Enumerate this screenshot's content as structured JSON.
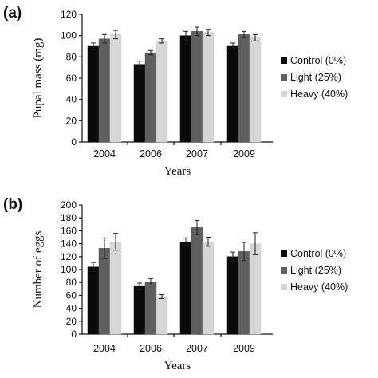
{
  "legend": [
    {
      "label": "Control (0%)",
      "color": "#0a0a0a"
    },
    {
      "label": "Light (25%)",
      "color": "#5f5f5f"
    },
    {
      "label": "Heavy (40%)",
      "color": "#d6d6d6"
    }
  ],
  "chart_data": [
    {
      "panel_label": "(a)",
      "type": "bar",
      "categories": [
        "2004",
        "2006",
        "2007",
        "2009"
      ],
      "series": [
        {
          "name": "Control (0%)",
          "values": [
            90,
            73,
            100,
            90
          ],
          "errors": [
            3,
            3,
            4,
            3
          ]
        },
        {
          "name": "Light (25%)",
          "values": [
            97,
            84,
            104,
            101
          ],
          "errors": [
            4,
            2,
            4,
            3
          ]
        },
        {
          "name": "Heavy (40%)",
          "values": [
            101,
            95,
            103,
            98
          ],
          "errors": [
            4,
            2,
            3,
            3
          ]
        }
      ],
      "xlabel": "Years",
      "ylabel": "Pupal mass (mg)",
      "ylim": [
        0,
        120
      ],
      "yticks": [
        0,
        20,
        40,
        60,
        80,
        100,
        120
      ],
      "grid": false,
      "legend_position": "right"
    },
    {
      "panel_label": "(b)",
      "type": "bar",
      "categories": [
        "2004",
        "2006",
        "2007",
        "2009"
      ],
      "series": [
        {
          "name": "Control (0%)",
          "values": [
            104,
            74,
            143,
            120
          ],
          "errors": [
            7,
            5,
            6,
            7
          ]
        },
        {
          "name": "Light (25%)",
          "values": [
            133,
            81,
            165,
            128
          ],
          "errors": [
            16,
            5,
            11,
            14
          ]
        },
        {
          "name": "Heavy (40%)",
          "values": [
            143,
            58,
            143,
            140
          ],
          "errors": [
            13,
            3,
            7,
            17
          ]
        }
      ],
      "xlabel": "Years",
      "ylabel": "Number of eggs",
      "ylim": [
        0,
        200
      ],
      "yticks": [
        0,
        20,
        40,
        60,
        80,
        100,
        120,
        140,
        160,
        180,
        200
      ],
      "grid": false,
      "legend_position": "right"
    }
  ]
}
